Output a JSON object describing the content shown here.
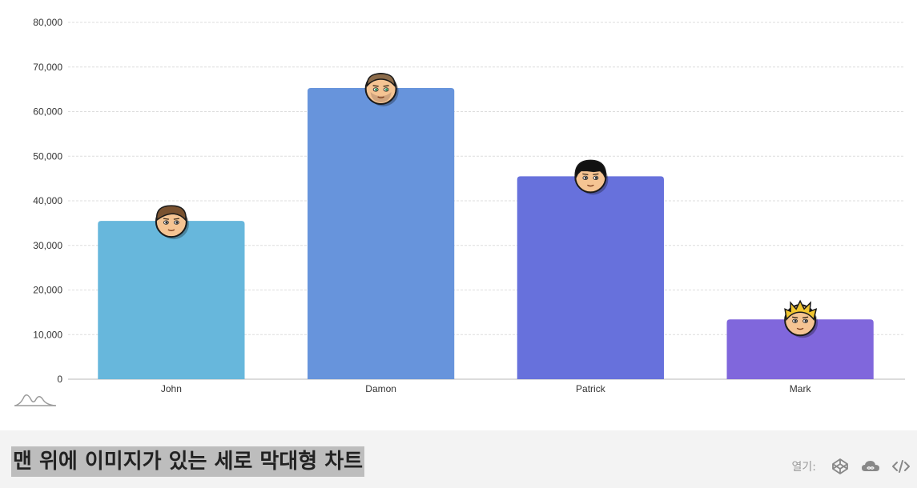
{
  "chart_data": {
    "type": "bar",
    "categories": [
      "John",
      "Damon",
      "Patrick",
      "Mark"
    ],
    "values": [
      35500,
      65300,
      45500,
      13400
    ],
    "colors": [
      "#67b7dc",
      "#6794dc",
      "#6771dc",
      "#8067dc"
    ],
    "bullet_icons": [
      "boy-brown-hair-icon",
      "man-stubble-icon",
      "boy-black-bangs-icon",
      "boy-blond-spiky-icon"
    ],
    "ylim": [
      0,
      80000
    ],
    "y_ticks": [
      "0",
      "10,000",
      "20,000",
      "30,000",
      "40,000",
      "50,000",
      "60,000",
      "70,000",
      "80,000"
    ],
    "y_tick_values": [
      0,
      10000,
      20000,
      30000,
      40000,
      50000,
      60000,
      70000,
      80000
    ],
    "grid": true,
    "title": "",
    "xlabel": "",
    "ylabel": ""
  },
  "footer": {
    "title": "맨 위에 이미지가 있는 세로 막대형 차트",
    "open_label": "열기:",
    "icons": [
      "codepen-icon",
      "jsfiddle-icon",
      "source-code-icon"
    ]
  }
}
